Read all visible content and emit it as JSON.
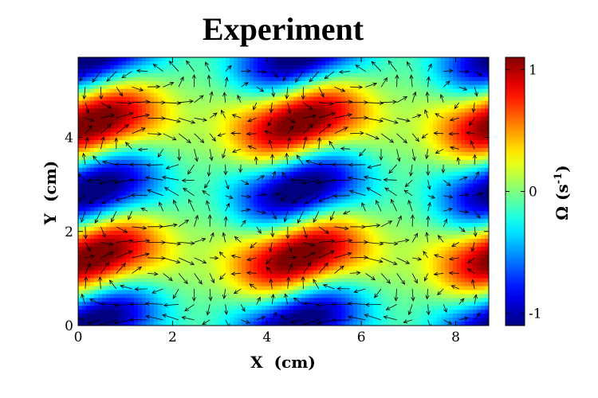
{
  "chart_data": {
    "type": "heatmap",
    "title": "Experiment",
    "xlabel": "X  (cm)",
    "ylabel": "Y  (cm)",
    "xlim": [
      0,
      8.7
    ],
    "ylim": [
      0,
      5.7
    ],
    "xticks": [
      0,
      2,
      4,
      6,
      8
    ],
    "yticks": [
      0,
      2,
      4
    ],
    "colorbar": {
      "label": "Ω (s",
      "label_sup": "-1",
      "label_close": ")",
      "range": [
        -1.1,
        1.1
      ],
      "ticks": [
        1,
        0,
        -1
      ],
      "tick_labels": [
        "1",
        "0",
        "-1"
      ],
      "colormap": "jet"
    },
    "overlay": "velocity vector arrows",
    "field_model": {
      "kx_period_cm": 4.35,
      "ky_period_cm": 2.85,
      "phase_x_cm": 0.35,
      "phase_y_cm": 1.48,
      "shear": 0.22
    },
    "colors": {
      "arrow": "#000000",
      "frame": "#000000"
    }
  }
}
